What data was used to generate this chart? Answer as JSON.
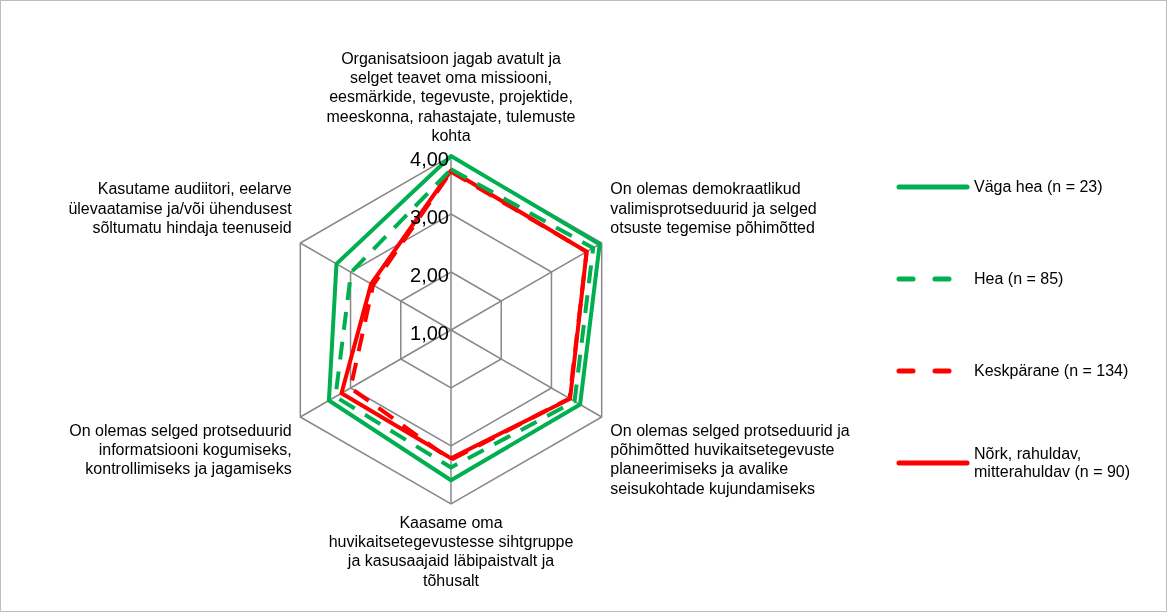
{
  "chart_data": {
    "type": "radar",
    "categories": [
      "Organisatsioon jagab avatult ja selget teavet oma missiooni, eesmärkide, tegevuste, projektide, meeskonna, rahastajate, tulemuste kohta",
      "On olemas demokraatlikud valimisprotseduurid ja selged otsuste tegemise põhimõtted",
      "On olemas selged protseduurid ja põhimõtted huvikaitsetegevuste planeerimiseks ja avalike seisukohtade kujundamiseks",
      "Kaasame oma huvikaitsetegevustesse sihtgruppe ja kasusaajaid läbipaistvalt ja tõhusalt",
      "On olemas selged protseduurid informatsiooni kogumiseks, kontrollimiseks ja jagamiseks",
      "Kasutame audiitori, eelarve ülevaatamise ja/või ühendusest sõltumatu hindaja teenuseid"
    ],
    "series": [
      {
        "name": "Väga hea (n = 23)",
        "color": "#00b050",
        "line_style": "solid",
        "values": [
          4.0,
          3.96,
          3.57,
          3.59,
          3.43,
          3.28
        ]
      },
      {
        "name": "Hea (n = 85)",
        "color": "#00b050",
        "line_style": "dashed",
        "values": [
          3.77,
          3.83,
          3.46,
          3.37,
          3.3,
          2.99
        ]
      },
      {
        "name": "Keskpärane (n = 134)",
        "color": "#ff0000",
        "line_style": "dashed",
        "values": [
          3.73,
          3.7,
          3.36,
          3.24,
          3.0,
          2.55
        ]
      },
      {
        "name": "Nõrk, rahuldav, mitterahuldav (n = 90)",
        "color": "#ff0000",
        "line_style": "solid",
        "values": [
          3.75,
          3.7,
          3.37,
          3.21,
          3.18,
          2.59
        ]
      }
    ],
    "ylim": [
      1,
      4
    ],
    "yticks": [
      {
        "value": 1,
        "label": "1,00"
      },
      {
        "value": 2,
        "label": "2,00"
      },
      {
        "value": 3,
        "label": "3,00"
      },
      {
        "value": 4,
        "label": "4,00"
      }
    ],
    "grid": true,
    "legend": "right",
    "marker": "none"
  }
}
